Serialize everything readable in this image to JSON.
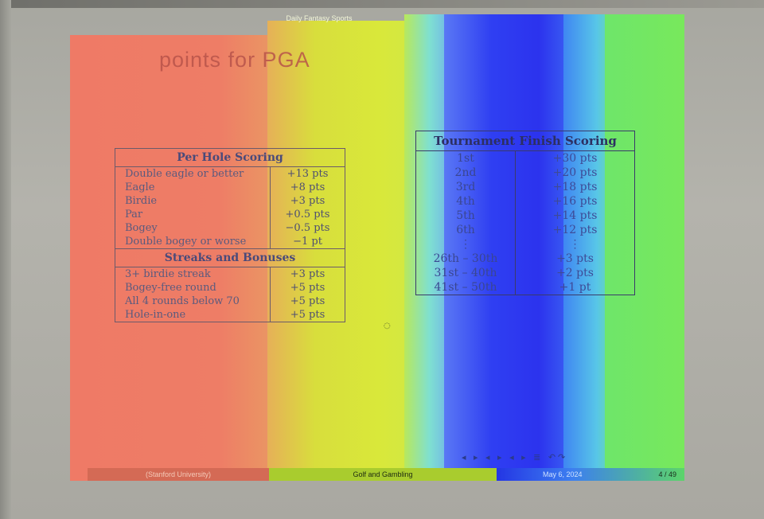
{
  "slide": {
    "header": "Daily Fantasy Sports",
    "title": "points for PGA"
  },
  "per_hole": {
    "heading": "Per Hole Scoring",
    "rows": [
      {
        "label": "Double eagle or better",
        "value": "+13 pts"
      },
      {
        "label": "Eagle",
        "value": "+8 pts"
      },
      {
        "label": "Birdie",
        "value": "+3 pts"
      },
      {
        "label": "Par",
        "value": "+0.5 pts"
      },
      {
        "label": "Bogey",
        "value": "−0.5 pts"
      },
      {
        "label": "Double bogey or worse",
        "value": "−1 pt"
      }
    ]
  },
  "streaks": {
    "heading": "Streaks and Bonuses",
    "rows": [
      {
        "label": "3+ birdie streak",
        "value": "+3 pts"
      },
      {
        "label": "Bogey-free round",
        "value": "+5 pts"
      },
      {
        "label": "All 4 rounds below 70",
        "value": "+5 pts"
      },
      {
        "label": "Hole-in-one",
        "value": "+5 pts"
      }
    ]
  },
  "finish": {
    "heading": "Tournament Finish Scoring",
    "rows": [
      {
        "place": "1st",
        "points": "+30 pts"
      },
      {
        "place": "2nd",
        "points": "+20 pts"
      },
      {
        "place": "3rd",
        "points": "+18 pts"
      },
      {
        "place": "4th",
        "points": "+16 pts"
      },
      {
        "place": "5th",
        "points": "+14 pts"
      },
      {
        "place": "6th",
        "points": "+12 pts"
      },
      {
        "place": "⋮",
        "points": "⋮"
      },
      {
        "place": "26th – 30th",
        "points": "+3 pts"
      },
      {
        "place": "31st – 40th",
        "points": "+2 pts"
      },
      {
        "place": "41st – 50th",
        "points": "+1 pt"
      }
    ]
  },
  "footer": {
    "author": "(Stanford University)",
    "talk": "Golf and Gambling",
    "date": "May 6, 2024",
    "page": "4 / 49"
  },
  "nav_symbols": "◂ ▸ ◂ ▸ ◂ ▸ ≣ ↶↷"
}
